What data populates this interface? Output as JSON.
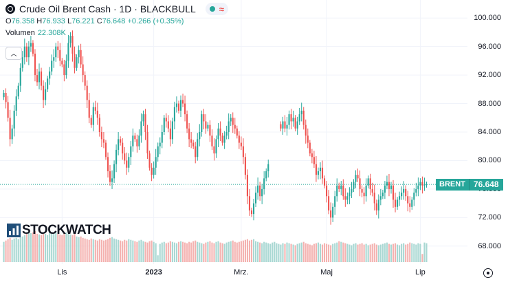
{
  "header": {
    "title": "Crude Oil Brent Cash · 1D · BLACKBULL",
    "ohlc": {
      "o_label": "O",
      "o": "76.358",
      "h_label": "H",
      "h": "76.933",
      "l_label": "L",
      "l": "76.221",
      "c_label": "C",
      "c": "76.648",
      "change": "+0.266 (+0.35%)"
    },
    "volume_label": "Volumen",
    "volume_value": "22.308K",
    "collapse_icon": "chevron-up-icon",
    "status_icons": [
      "market-open-dot-icon",
      "wave-icon"
    ]
  },
  "price_badge": {
    "symbol": "BRENT",
    "price": "76.648"
  },
  "watermark": "STOCKWATCH",
  "colors": {
    "up": "#26a69a",
    "down": "#ef5350",
    "vol_up": "#a9d8d3",
    "vol_down": "#f4b2b0",
    "grid": "#f0f3fa",
    "last_line": "#26a69a"
  },
  "chart_data": {
    "type": "candlestick",
    "title": "Crude Oil Brent Cash · 1D · BLACKBULL",
    "y_ticks": [
      "100.000",
      "96.000",
      "92.000",
      "88.000",
      "84.000",
      "80.000",
      "76.000",
      "72.000",
      "68.000"
    ],
    "x_ticks": [
      {
        "label": "Lis",
        "index": 28,
        "bold": false
      },
      {
        "label": "2023",
        "index": 72,
        "bold": true
      },
      {
        "label": "Mrz.",
        "index": 114,
        "bold": false
      },
      {
        "label": "Maj",
        "index": 155,
        "bold": false
      },
      {
        "label": "Lip",
        "index": 200,
        "bold": false
      }
    ],
    "ylim": [
      66.7,
      101.3
    ],
    "last_price": 76.648,
    "closes": [
      89.5,
      88.2,
      86.0,
      83.0,
      84.5,
      87.0,
      89.0,
      90.5,
      93.0,
      94.5,
      96.0,
      94.5,
      96.0,
      96.5,
      95.0,
      92.0,
      91.0,
      92.5,
      90.5,
      88.5,
      90.0,
      91.5,
      92.5,
      94.0,
      94.5,
      96.0,
      95.5,
      94.0,
      93.5,
      92.0,
      94.0,
      96.5,
      97.5,
      95.0,
      93.0,
      94.5,
      95.5,
      93.5,
      92.0,
      90.5,
      88.5,
      86.0,
      85.0,
      87.5,
      87.0,
      86.0,
      84.0,
      83.0,
      82.5,
      80.5,
      78.5,
      77.0,
      77.5,
      79.5,
      81.5,
      83.0,
      82.5,
      81.0,
      80.0,
      79.0,
      80.5,
      82.0,
      83.5,
      83.0,
      82.0,
      83.5,
      85.5,
      86.5,
      84.0,
      81.0,
      79.0,
      78.0,
      79.0,
      80.5,
      82.0,
      82.5,
      84.0,
      86.0,
      85.5,
      84.5,
      83.0,
      85.5,
      87.5,
      88.0,
      87.0,
      88.5,
      88.0,
      86.5,
      84.5,
      83.0,
      82.5,
      82.0,
      80.5,
      83.0,
      84.0,
      86.5,
      85.5,
      84.5,
      85.0,
      83.5,
      82.0,
      81.0,
      83.0,
      84.5,
      83.5,
      82.5,
      83.5,
      84.0,
      85.5,
      86.0,
      85.0,
      84.5,
      83.5,
      82.5,
      82.0,
      80.5,
      78.0,
      75.0,
      73.0,
      72.5,
      74.0,
      75.5,
      76.5,
      75.0,
      76.0,
      77.5,
      78.5,
      79.5,
      null,
      null,
      null,
      null,
      null,
      84.5,
      85.5,
      84.5,
      85.0,
      86.5,
      85.5,
      86.0,
      84.5,
      85.5,
      86.5,
      87.0,
      85.0,
      83.5,
      82.5,
      81.0,
      80.5,
      79.5,
      78.0,
      78.5,
      79.0,
      77.5,
      76.5,
      75.0,
      73.0,
      72.0,
      73.5,
      75.0,
      76.5,
      76.0,
      76.5,
      75.0,
      74.5,
      75.0,
      75.5,
      76.0,
      77.0,
      78.0,
      77.5,
      76.0,
      75.5,
      75.0,
      76.5,
      77.5,
      76.0,
      75.5,
      74.0,
      73.0,
      74.5,
      75.0,
      75.5,
      76.5,
      77.0,
      76.0,
      76.5,
      74.5,
      73.5,
      74.5,
      75.0,
      75.5,
      76.0,
      75.0,
      74.0,
      73.5,
      74.5,
      75.5,
      76.0,
      76.5,
      77.0,
      76.5,
      76.6,
      76.648
    ],
    "volumes": [
      30,
      32,
      34,
      36,
      33,
      35,
      36,
      34,
      37,
      38,
      40,
      42,
      45,
      43,
      44,
      46,
      42,
      41,
      40,
      43,
      42,
      40,
      45,
      44,
      43,
      44,
      42,
      41,
      40,
      43,
      44,
      42,
      41,
      40,
      42,
      38,
      37,
      38,
      36,
      35,
      34,
      33,
      35,
      34,
      33,
      32,
      34,
      33,
      32,
      33,
      34,
      36,
      37,
      35,
      34,
      33,
      32,
      31,
      33,
      32,
      34,
      33,
      32,
      31,
      30,
      32,
      33,
      31,
      30,
      29,
      31,
      32,
      30,
      28,
      10,
      27,
      29,
      30,
      28,
      29,
      31,
      30,
      29,
      28,
      30,
      31,
      30,
      29,
      28,
      30,
      29,
      31,
      32,
      30,
      29,
      28,
      27,
      29,
      30,
      31,
      29,
      28,
      30,
      31,
      29,
      28,
      27,
      29,
      30,
      31,
      32,
      30,
      29,
      30,
      31,
      32,
      33,
      34,
      32,
      33,
      34,
      31,
      30,
      29,
      28,
      30,
      29,
      28,
      27,
      29,
      30,
      28,
      27,
      26,
      28,
      27,
      29,
      28,
      27,
      26,
      25,
      27,
      28,
      29,
      30,
      28,
      27,
      26,
      25,
      27,
      28,
      29,
      27,
      26,
      28,
      27,
      26,
      25,
      27,
      28,
      29,
      31,
      30,
      29,
      28,
      27,
      26,
      25,
      27,
      28,
      26,
      27,
      28,
      26,
      27,
      25,
      26,
      27,
      28,
      26,
      25,
      26,
      27,
      28,
      29,
      27,
      26,
      27,
      28,
      26,
      25,
      27,
      28,
      26,
      27,
      29,
      28,
      27,
      26,
      28,
      27,
      12,
      29,
      28,
      27
    ]
  }
}
